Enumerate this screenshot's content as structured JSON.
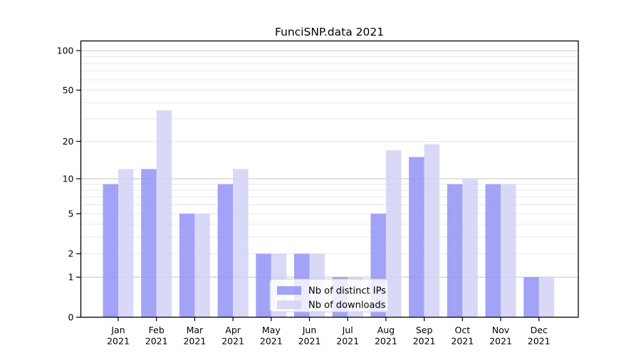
{
  "figure": {
    "title": "FunciSNP.data 2021"
  },
  "chart_data": {
    "type": "bar",
    "title": "FunciSNP.data 2021",
    "categories": [
      "Jan 2021",
      "Feb 2021",
      "Mar 2021",
      "Apr 2021",
      "May 2021",
      "Jun 2021",
      "Jul 2021",
      "Aug 2021",
      "Sep 2021",
      "Oct 2021",
      "Nov 2021",
      "Dec 2021"
    ],
    "months": [
      "Jan",
      "Feb",
      "Mar",
      "Apr",
      "May",
      "Jun",
      "Jul",
      "Aug",
      "Sep",
      "Oct",
      "Nov",
      "Dec"
    ],
    "year": "2021",
    "series": [
      {
        "key": "distinct-ips",
        "name": "Nb of distinct IPs",
        "color": "#9292f5",
        "values": [
          9,
          12,
          5,
          9,
          2,
          2,
          1,
          5,
          15,
          9,
          9,
          1
        ]
      },
      {
        "key": "downloads",
        "name": "Nb of downloads",
        "color": "#d2d2f6",
        "values": [
          12,
          35,
          5,
          12,
          2,
          2,
          1,
          17,
          19,
          10,
          9,
          1
        ]
      }
    ],
    "y_axis": {
      "scale": "log10(value+1)",
      "tick_values": [
        0,
        1,
        2,
        5,
        10,
        20,
        50,
        100
      ],
      "tick_labels": [
        "0",
        "1",
        "2",
        "5",
        "10",
        "20",
        "50",
        "100"
      ],
      "major_gridlines": [
        1,
        10,
        100
      ],
      "minor_gridlines": [
        2,
        3,
        4,
        5,
        6,
        7,
        8,
        9,
        20,
        30,
        40,
        50,
        60,
        70,
        80,
        90
      ],
      "ylim": [
        0,
        120
      ]
    },
    "xlabel": "",
    "ylabel": "",
    "grid": "horizontal",
    "legend": {
      "position": "lower-center",
      "labels": [
        "Nb of distinct IPs",
        "Nb of downloads"
      ]
    }
  },
  "colors": {
    "grid_major": "#c6c6c6",
    "grid_minor": "#e7e7e7",
    "axis": "#000000",
    "bar_opacity": "0.85",
    "legend_border": "#cccccc",
    "legend_bg_opacity": "0.8"
  }
}
